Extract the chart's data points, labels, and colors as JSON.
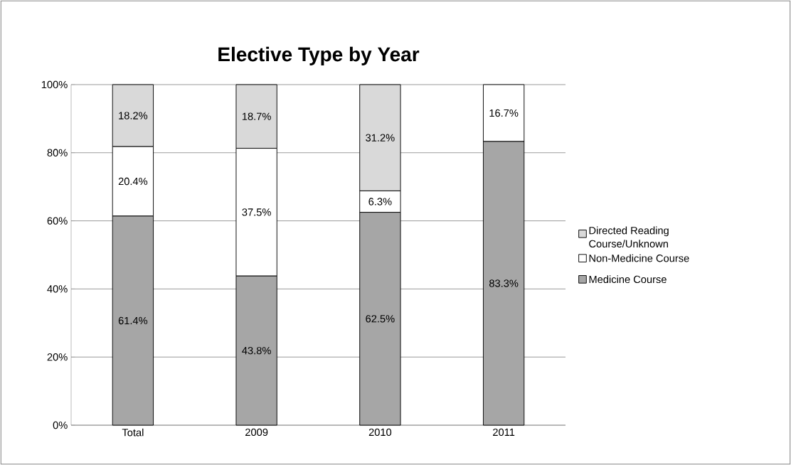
{
  "chart_data": {
    "type": "bar",
    "title": "Elective Type by Year",
    "stacked": true,
    "categories": [
      "Total",
      "2009",
      "2010",
      "2011"
    ],
    "series": [
      {
        "name": "Medicine Course",
        "color": "#a6a6a6",
        "values": [
          61.4,
          43.8,
          62.5,
          83.3
        ],
        "value_labels": [
          "61.4%",
          "43.8%",
          "62.5%",
          "83.3%"
        ]
      },
      {
        "name": "Non-Medicine Course",
        "color": "#ffffff",
        "values": [
          20.4,
          37.5,
          6.3,
          16.7
        ],
        "value_labels": [
          "20.4%",
          "37.5%",
          "6.3%",
          "16.7%"
        ]
      },
      {
        "name": "Directed Reading Course/Unknown",
        "color": "#d9d9d9",
        "values": [
          18.2,
          18.7,
          31.2,
          null
        ],
        "value_labels": [
          "18.2%",
          "18.7%",
          "31.2%",
          null
        ]
      }
    ],
    "ylim": [
      0,
      100
    ],
    "yticks": [
      {
        "value": 0,
        "label": "0%"
      },
      {
        "value": 20,
        "label": "20%"
      },
      {
        "value": 40,
        "label": "40%"
      },
      {
        "value": 60,
        "label": "60%"
      },
      {
        "value": 80,
        "label": "80%"
      },
      {
        "value": 100,
        "label": "100%"
      }
    ],
    "grid": "y",
    "legend": "right"
  }
}
